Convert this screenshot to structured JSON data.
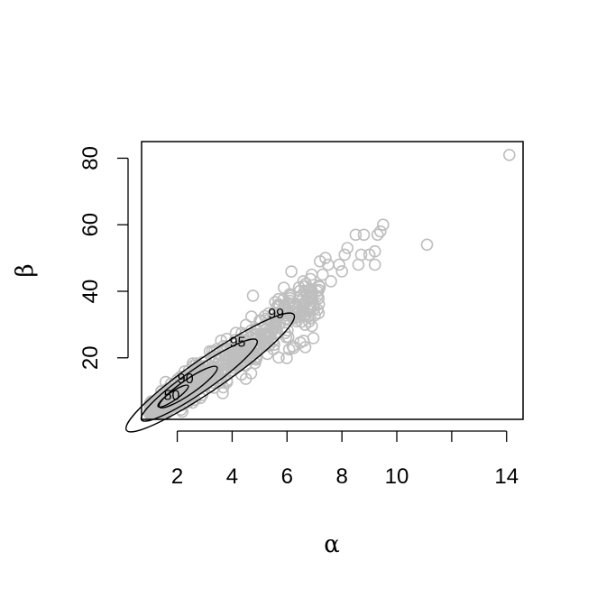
{
  "chart_data": {
    "type": "scatter",
    "title": "",
    "xlabel": "α",
    "ylabel": "β",
    "xlim": [
      0.7,
      14.6
    ],
    "ylim": [
      1.5,
      85
    ],
    "xticks": [
      2,
      4,
      6,
      8,
      10,
      12,
      14
    ],
    "xtick_labels": [
      "2",
      "4",
      "6",
      "8",
      "10",
      "",
      "14"
    ],
    "yticks": [
      20,
      40,
      60,
      80
    ],
    "ytick_labels": [
      "20",
      "40",
      "60",
      "80"
    ],
    "grid": false,
    "point_color": "#bebebe",
    "contour_color": "#000000",
    "outlier_points": [
      {
        "x": 14.1,
        "y": 81
      },
      {
        "x": 11.1,
        "y": 54
      },
      {
        "x": 9.5,
        "y": 60
      },
      {
        "x": 9.4,
        "y": 58
      },
      {
        "x": 9.3,
        "y": 57
      },
      {
        "x": 9.2,
        "y": 48
      },
      {
        "x": 9.2,
        "y": 52
      },
      {
        "x": 9.0,
        "y": 51
      },
      {
        "x": 8.8,
        "y": 57
      },
      {
        "x": 8.7,
        "y": 51
      },
      {
        "x": 8.6,
        "y": 48
      },
      {
        "x": 8.5,
        "y": 57
      },
      {
        "x": 8.2,
        "y": 53
      },
      {
        "x": 8.1,
        "y": 51
      },
      {
        "x": 8.0,
        "y": 46
      },
      {
        "x": 7.9,
        "y": 48
      },
      {
        "x": 7.6,
        "y": 43
      },
      {
        "x": 7.5,
        "y": 48
      },
      {
        "x": 7.4,
        "y": 50
      },
      {
        "x": 7.3,
        "y": 45
      },
      {
        "x": 7.2,
        "y": 49
      },
      {
        "x": 7.1,
        "y": 40
      },
      {
        "x": 6.9,
        "y": 45
      },
      {
        "x": 6.8,
        "y": 35
      },
      {
        "x": 6.6,
        "y": 43
      },
      {
        "x": 6.2,
        "y": 32
      }
    ],
    "cluster": {
      "x_range": [
        1.0,
        7.2
      ],
      "slope": 5.7,
      "intercept": -2.6,
      "spread": 2.2,
      "count": 600
    },
    "contours": [
      {
        "level": "99",
        "cx": 3.2,
        "cy": 15.6,
        "a": 3.05,
        "b": 0.55,
        "label_x": 5.6,
        "label_y": 33.5
      },
      {
        "level": "95",
        "cx": 2.8,
        "cy": 13.3,
        "a": 2.1,
        "b": 0.4,
        "label_x": 4.2,
        "label_y": 25
      },
      {
        "level": "90",
        "cx": 2.4,
        "cy": 11.2,
        "a": 1.05,
        "b": 0.24,
        "label_x": 2.3,
        "label_y": 14
      },
      {
        "level": "50",
        "cx": 1.85,
        "cy": 8.5,
        "a": 0.55,
        "b": 0.14,
        "label_x": 1.8,
        "label_y": 9
      }
    ]
  }
}
